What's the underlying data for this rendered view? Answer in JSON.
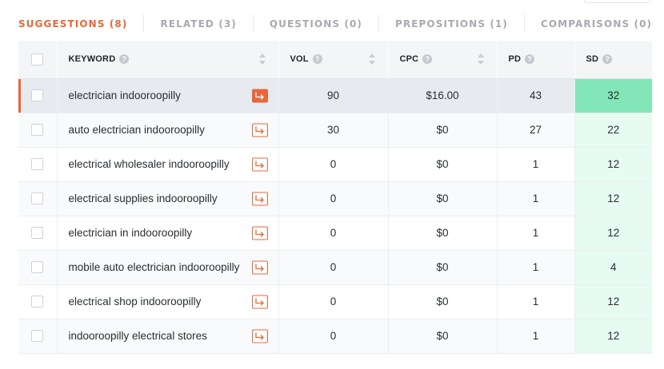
{
  "tabs": [
    {
      "label": "SUGGESTIONS (8)",
      "active": true
    },
    {
      "label": "RELATED (3)",
      "active": false
    },
    {
      "label": "QUESTIONS (0)",
      "active": false
    },
    {
      "label": "PREPOSITIONS (1)",
      "active": false
    },
    {
      "label": "COMPARISONS (0)",
      "active": false
    }
  ],
  "columns": {
    "keyword": "KEYWORD",
    "vol": "VOL",
    "cpc": "CPC",
    "pd": "PD",
    "sd": "SD",
    "help_glyph": "?"
  },
  "rows": [
    {
      "keyword": "electrician indooroopilly",
      "vol": "90",
      "cpc": "$16.00",
      "pd": "43",
      "sd": "32"
    },
    {
      "keyword": "auto electrician indooroopilly",
      "vol": "30",
      "cpc": "$0",
      "pd": "27",
      "sd": "22"
    },
    {
      "keyword": "electrical wholesaler indooroopilly",
      "vol": "0",
      "cpc": "$0",
      "pd": "1",
      "sd": "12"
    },
    {
      "keyword": "electrical supplies indooroopilly",
      "vol": "0",
      "cpc": "$0",
      "pd": "1",
      "sd": "12"
    },
    {
      "keyword": "electrician in indooroopilly",
      "vol": "0",
      "cpc": "$0",
      "pd": "1",
      "sd": "12"
    },
    {
      "keyword": "mobile auto electrician indooroopilly",
      "vol": "0",
      "cpc": "$0",
      "pd": "1",
      "sd": "4"
    },
    {
      "keyword": "electrical shop indooroopilly",
      "vol": "0",
      "cpc": "$0",
      "pd": "1",
      "sd": "12"
    },
    {
      "keyword": "indooroopilly electrical stores",
      "vol": "0",
      "cpc": "$0",
      "pd": "1",
      "sd": "12"
    }
  ],
  "icons": {
    "help": "question-circle-icon",
    "sort": "sort-arrows-icon",
    "open": "arrow-out-icon"
  },
  "colors": {
    "accent": "#e8663b",
    "sd_highlight": "#82e6b8",
    "sd_tint": "#e6fbf1"
  }
}
